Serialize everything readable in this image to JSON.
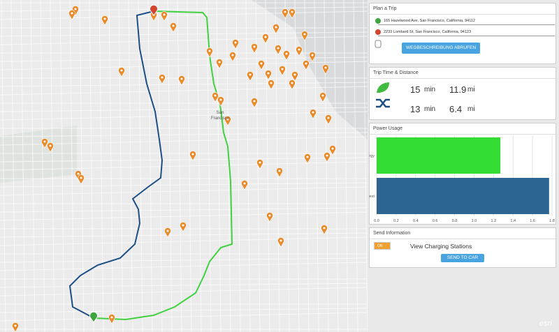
{
  "map": {
    "city_label": [
      "San",
      "Francisco"
    ],
    "attribution": "esri"
  },
  "plan_trip": {
    "title": "Plan a Trip",
    "origin": "165 Hazelwood Ave, San Francisco, California, 94112",
    "destination": "2233 Lombard St, San Francisco, California, 94123",
    "button": "WEGBESCHREIBUNG ABRUFEN"
  },
  "trip": {
    "title": "Trip Time & Distance",
    "rows": [
      {
        "time": 15,
        "time_unit": "min",
        "distance": 11.9,
        "distance_unit": "mi"
      },
      {
        "time": 13,
        "time_unit": "min",
        "distance": 6.4,
        "distance_unit": "mi"
      }
    ]
  },
  "power": {
    "title": "Power Usage"
  },
  "chart_data": {
    "type": "bar",
    "orientation": "horizontal",
    "categories": [
      "Least Energy",
      "Fastest"
    ],
    "series": [
      {
        "name": "Least Energy",
        "color": "#33dd33",
        "values": [
          1.27,
          null
        ]
      },
      {
        "name": "Fastest",
        "color": "#2e6590",
        "values": [
          null,
          1.77
        ]
      }
    ],
    "xlim": [
      0,
      1.8
    ],
    "xticks": [
      {
        "value": 0,
        "label": "0.0"
      },
      0.2,
      0.4,
      0.6,
      0.8,
      {
        "value": 1,
        "label": "1.0"
      },
      1.2,
      1.4,
      1.6,
      1.8
    ],
    "grid": true
  },
  "send": {
    "title": "Send Information",
    "toggle": "ON",
    "label": "View Charging Stations",
    "button": "SEND TO CAR"
  }
}
